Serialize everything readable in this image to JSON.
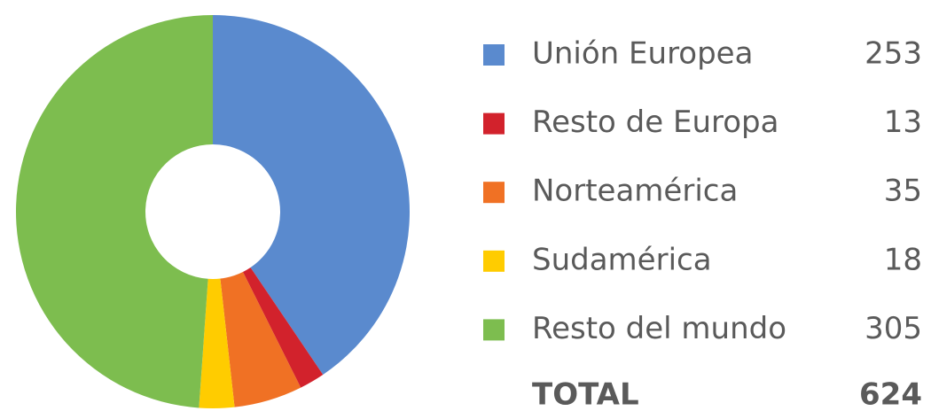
{
  "chart_data": {
    "type": "pie",
    "donut": true,
    "categories": [
      "Unión Europea",
      "Resto de Europa",
      "Norteamérica",
      "Sudamérica",
      "Resto del mundo"
    ],
    "values": [
      253,
      13,
      35,
      18,
      305
    ],
    "colors": [
      "#5a8ace",
      "#d2222c",
      "#f07124",
      "#ffcc00",
      "#7dbd4f"
    ],
    "total_label": "TOTAL",
    "total": 624
  }
}
